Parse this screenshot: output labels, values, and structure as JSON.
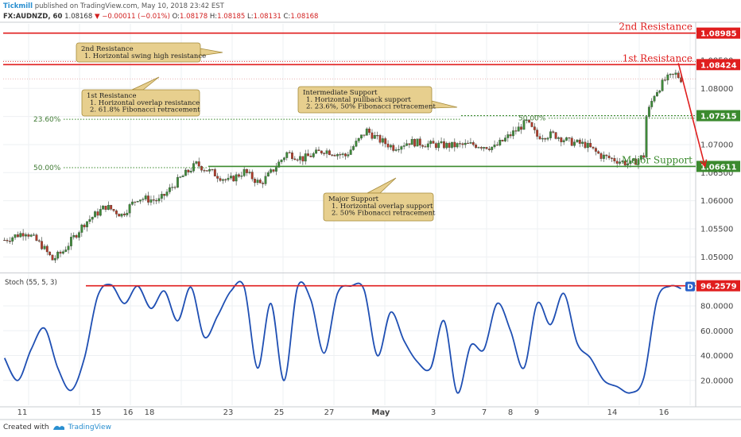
{
  "header": {
    "brand": "Tickmill",
    "published": "published on TradingView.com, May 10, 2018 23:42 EST"
  },
  "symbol_row": {
    "symbol": "FX:AUDNZD, 60",
    "last": "1.08168",
    "change": "−0.00011 (−0.01%)",
    "o_label": "O:",
    "o": "1.08178",
    "h_label": "H:",
    "h": "1.08185",
    "l_label": "L:",
    "l": "1.08131",
    "c_label": "C:",
    "c": "1.08168"
  },
  "footer": {
    "created_with": "Created with",
    "tradingview": "TradingView"
  },
  "colors": {
    "resistance": "#e01e1e",
    "support": "#3b8a2e",
    "candle_up": "#3f8a3a",
    "candle_down": "#b13a2a",
    "stoch": "#1f4fb3",
    "note_bg": "#e7cf8e",
    "note_border": "#a58a3a",
    "grid": "#eef0f3"
  },
  "chart_data": [
    {
      "type": "candlestick",
      "instrument": "FX:AUDNZD, 60",
      "ylim": [
        1.0475,
        1.0915
      ],
      "y_ticks": [
        {
          "v": 1.05,
          "label": "1.05000"
        },
        {
          "v": 1.055,
          "label": "1.05500"
        },
        {
          "v": 1.06,
          "label": "1.06000"
        },
        {
          "v": 1.065,
          "label": "1.06500"
        },
        {
          "v": 1.07,
          "label": "1.07000"
        },
        {
          "v": 1.075,
          "label": "1.07500"
        },
        {
          "v": 1.08,
          "label": "1.08000"
        },
        {
          "v": 1.085,
          "label": "1.08500"
        }
      ],
      "x_ticks": [
        "11",
        "15",
        "16",
        "18",
        "23",
        "25",
        "27",
        "May",
        "3",
        "7",
        "8",
        "9",
        "14",
        "16"
      ],
      "price_path": [
        [
          0,
          1.053
        ],
        [
          8,
          1.0545
        ],
        [
          14,
          1.052
        ],
        [
          18,
          1.0495
        ],
        [
          22,
          1.051
        ],
        [
          30,
          1.056
        ],
        [
          38,
          1.059
        ],
        [
          44,
          1.0575
        ],
        [
          50,
          1.0605
        ],
        [
          58,
          1.06
        ],
        [
          66,
          1.064
        ],
        [
          72,
          1.0665
        ],
        [
          78,
          1.065
        ],
        [
          84,
          1.0635
        ],
        [
          90,
          1.0652
        ],
        [
          96,
          1.063
        ],
        [
          100,
          1.065
        ],
        [
          106,
          1.0685
        ],
        [
          112,
          1.0675
        ],
        [
          120,
          1.069
        ],
        [
          128,
          1.068
        ],
        [
          136,
          1.0725
        ],
        [
          140,
          1.071
        ],
        [
          146,
          1.0695
        ],
        [
          152,
          1.0705
        ],
        [
          160,
          1.07
        ],
        [
          168,
          1.0698
        ],
        [
          176,
          1.07
        ],
        [
          184,
          1.0695
        ],
        [
          192,
          1.0725
        ],
        [
          196,
          1.074
        ],
        [
          200,
          1.0715
        ],
        [
          206,
          1.0718
        ],
        [
          212,
          1.0705
        ],
        [
          218,
          1.07
        ],
        [
          224,
          1.068
        ],
        [
          230,
          1.0672
        ],
        [
          235,
          1.0665
        ],
        [
          240,
          1.068
        ],
        [
          241,
          1.075
        ],
        [
          244,
          1.079
        ],
        [
          248,
          1.0815
        ],
        [
          252,
          1.0825
        ],
        [
          254,
          1.0817
        ]
      ],
      "levels": [
        {
          "name": "2nd Resistance",
          "value": 1.08985,
          "label": "1.08985",
          "kind": "resistance"
        },
        {
          "name": "1st Resistance",
          "value": 1.08424,
          "label": "1.08424",
          "kind": "resistance"
        },
        {
          "name": "",
          "value": 1.07515,
          "label": "1.07515",
          "kind": "support"
        },
        {
          "name": "Major Support",
          "value": 1.06611,
          "label": "1.06611",
          "kind": "support"
        }
      ],
      "fibonacci": [
        {
          "label": "23.60%",
          "value": 1.0745
        },
        {
          "label": "50.00%",
          "value": 1.0659
        },
        {
          "label": "50.00%",
          "value": 1.0747
        }
      ],
      "annotations": [
        {
          "title": "2nd Resistance",
          "lines": [
            "1. Horizontal swing high resistance"
          ]
        },
        {
          "title": "1st Resistance",
          "lines": [
            "1. Horizontal overlap resistance",
            "2. 61.8% Fibonacci retracement"
          ]
        },
        {
          "title": "Intermediate Support",
          "lines": [
            "1. Horizontal pullback support",
            "2. 23.6%, 50% Fibonacci retracement"
          ]
        },
        {
          "title": "Major Support",
          "lines": [
            "1. Horizontal overlap support",
            "2. 50% Fibonacci retracement"
          ]
        }
      ],
      "projection": [
        [
          253,
          1.0845
        ],
        [
          263,
          1.0661
        ]
      ]
    },
    {
      "type": "line",
      "indicator": "Stoch (55, 5, 3)",
      "ylim": [
        0,
        105
      ],
      "y_ticks": [
        {
          "v": 20,
          "label": "20.0000"
        },
        {
          "v": 40,
          "label": "40.0000"
        },
        {
          "v": 60,
          "label": "60.0000"
        },
        {
          "v": 80,
          "label": "80.0000"
        }
      ],
      "current": {
        "value": 96.2579,
        "label": "96.2579"
      },
      "badge": "D",
      "series": [
        {
          "x": [
            0,
            5,
            10,
            15,
            20,
            25,
            30,
            35,
            40,
            45,
            50,
            55,
            60,
            65,
            70,
            75,
            80,
            85,
            90,
            95,
            100,
            105,
            110,
            115,
            120,
            125,
            130,
            135,
            140,
            145,
            150,
            155,
            160,
            165,
            170,
            175,
            180,
            185,
            190,
            195,
            200,
            205,
            210,
            215,
            220,
            225,
            230,
            235,
            240,
            245,
            250,
            254
          ],
          "values": [
            38,
            20,
            45,
            62,
            30,
            12,
            38,
            88,
            97,
            82,
            96,
            78,
            92,
            68,
            95,
            55,
            72,
            92,
            95,
            30,
            82,
            20,
            95,
            85,
            42,
            90,
            96,
            93,
            40,
            75,
            52,
            35,
            30,
            68,
            10,
            48,
            45,
            82,
            60,
            30,
            82,
            65,
            90,
            50,
            38,
            20,
            15,
            10,
            22,
            85,
            96,
            94
          ]
        }
      ]
    }
  ]
}
